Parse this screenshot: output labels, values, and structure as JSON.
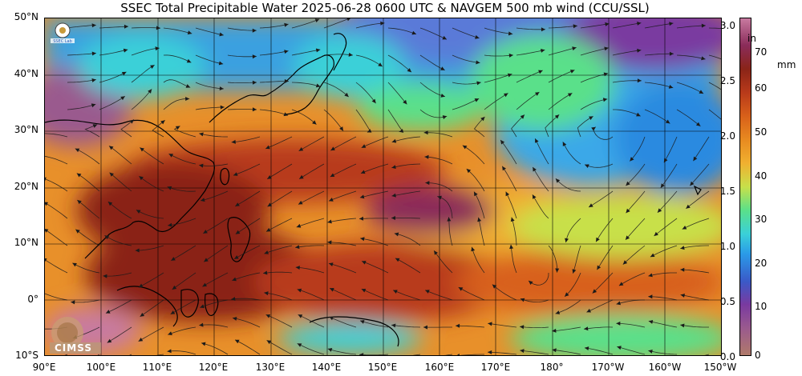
{
  "title": "SSEC Total Precipitable Water  2025-06-28 0600 UTC & NAVGEM 500 mb wind (CCU/SSL)",
  "lat_labels": [
    "50°N",
    "40°N",
    "30°N",
    "20°N",
    "10°N",
    "0°",
    "10°S"
  ],
  "lon_labels": [
    "90°E",
    "100°E",
    "110°E",
    "120°E",
    "130°E",
    "140°E",
    "150°E",
    "160°E",
    "170°E",
    "180°",
    "170°W",
    "160°W",
    "150°W"
  ],
  "colorbar": {
    "inch_unit": "in",
    "mm_unit": "mm",
    "inch_ticks": [
      "3.0",
      "2.5",
      "2.0",
      "1.5",
      "1.0",
      "0.5",
      "0.0"
    ],
    "mm_ticks": [
      "70",
      "60",
      "50",
      "40",
      "30",
      "20",
      "10",
      "0"
    ]
  },
  "logos": {
    "bottom_left": "CIMSS",
    "top_left_name": "ssec-logo"
  },
  "colors": {
    "very_moist": "#8a2418",
    "moist": "#d8601a",
    "medium": "#f0b030",
    "mid_low": "#5ae08a",
    "dry": "#2a9ae8",
    "very_dry": "#7a3aa0",
    "streamline": "#1a1a1a"
  }
}
